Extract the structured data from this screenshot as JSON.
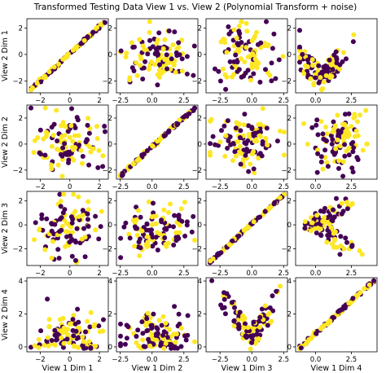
{
  "figure": {
    "title": "Transformed Testing Data View 1 vs. View 2 (Polynomial Transform + noise)"
  },
  "chart_data": {
    "type": "scatter",
    "title": "Transformed Testing Data View 1 vs. View 2 (Polynomial Transform + noise)",
    "grid": false,
    "legend": "none",
    "class_colors": [
      "#440154",
      "#fde725"
    ],
    "col_labels": [
      "View 1 Dim 1",
      "View 1 Dim 2",
      "View 1 Dim 3",
      "View 1 Dim 4"
    ],
    "row_labels": [
      "View 2 Dim 1",
      "View 2 Dim 2",
      "View 2 Dim 3",
      "View 2 Dim 4"
    ],
    "col_xlim": [
      [
        -2.9,
        2.6
      ],
      [
        -2.8,
        3.6
      ],
      [
        -3.6,
        2.8
      ],
      [
        -1.4,
        4.3
      ]
    ],
    "row_ylim": [
      [
        -2.9,
        2.7
      ],
      [
        -2.7,
        3.0
      ],
      [
        -3.4,
        2.8
      ],
      [
        -0.3,
        4.2
      ]
    ],
    "col_xticks": [
      [
        -2,
        0,
        2
      ],
      [
        -2.5,
        0.0,
        2.5
      ],
      [
        -2.5,
        0.0,
        2.5
      ],
      [
        0.0,
        2.5
      ]
    ],
    "col_xtick_labels": [
      [
        "−2",
        "0",
        "2"
      ],
      [
        "−2.5",
        "0.0",
        "2.5"
      ],
      [
        "−2.5",
        "0.0",
        "2.5"
      ],
      [
        "0.0",
        "2.5"
      ]
    ],
    "row_yticks": [
      [
        -2,
        0,
        2
      ],
      [
        -2,
        0,
        2
      ],
      [
        -2,
        0,
        2
      ],
      [
        0,
        2,
        4
      ]
    ],
    "row_ytick_labels": [
      [
        "−2",
        "0",
        "2"
      ],
      [
        "−2",
        "0",
        "2"
      ],
      [
        "−2",
        "0",
        "2"
      ],
      [
        "0",
        "2",
        "4"
      ]
    ],
    "panel_relations": [
      [
        "identity",
        "cloud",
        "cloud",
        "vee"
      ],
      [
        "cloud",
        "identity",
        "cloud",
        "cloud"
      ],
      [
        "cloud",
        "cloud",
        "identity",
        "vee-side"
      ],
      [
        "cloud-low",
        "cloud-low",
        "vee",
        "identity"
      ]
    ]
  }
}
